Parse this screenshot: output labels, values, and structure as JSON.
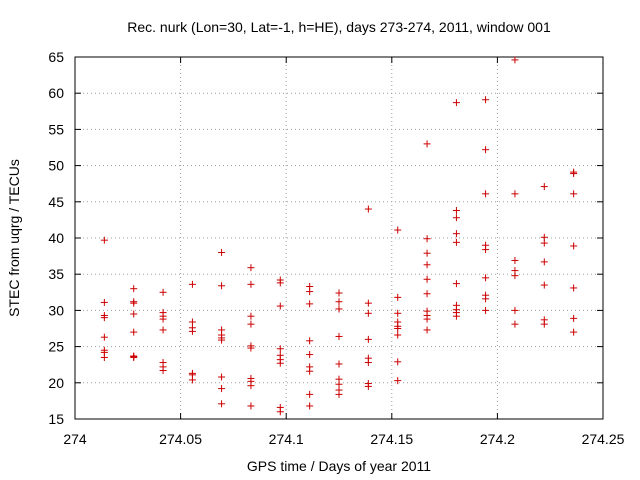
{
  "chart_data": {
    "type": "scatter",
    "title": "Rec. nurk (Lon=30, Lat=-1, h=HE), days 273-274, 2011, window 001",
    "xlabel": "GPS time / Days of year 2011",
    "ylabel": "STEC from uqrg / TECUs",
    "xlim": [
      274,
      274.25
    ],
    "ylim": [
      15,
      65
    ],
    "xticks": [
      "274",
      "274.05",
      "274.1",
      "274.15",
      "274.2",
      "274.25"
    ],
    "yticks": [
      "15",
      "20",
      "25",
      "30",
      "35",
      "40",
      "45",
      "50",
      "55",
      "60",
      "65"
    ],
    "grid": true,
    "marker": "plus",
    "color": "#cc0000",
    "series": [
      {
        "x": [
          274.0139,
          274.0139,
          274.0139,
          274.0139,
          274.0139,
          274.0139,
          274.0139,
          274.0139,
          274.0278,
          274.0278,
          274.0278,
          274.0278,
          274.0278,
          274.0278,
          274.0278,
          274.0278,
          274.0417,
          274.0417,
          274.0417,
          274.0417,
          274.0417,
          274.0417,
          274.0417,
          274.0417,
          274.0556,
          274.0556,
          274.0556,
          274.0556,
          274.0556,
          274.0556,
          274.0556,
          274.0694,
          274.0694,
          274.0694,
          274.0694,
          274.0694,
          274.0694,
          274.0694,
          274.0694,
          274.0694,
          274.0833,
          274.0833,
          274.0833,
          274.0833,
          274.0833,
          274.0833,
          274.0833,
          274.0833,
          274.0833,
          274.0833,
          274.0972,
          274.0972,
          274.0972,
          274.0972,
          274.0972,
          274.0972,
          274.0972,
          274.0972,
          274.0972,
          274.1111,
          274.1111,
          274.1111,
          274.1111,
          274.1111,
          274.1111,
          274.1111,
          274.1111,
          274.1111,
          274.125,
          274.125,
          274.125,
          274.125,
          274.125,
          274.125,
          274.125,
          274.125,
          274.125,
          274.1389,
          274.1389,
          274.1389,
          274.1389,
          274.1389,
          274.1389,
          274.1389,
          274.1389,
          274.1528,
          274.1528,
          274.1528,
          274.1528,
          274.1528,
          274.1528,
          274.1528,
          274.1528,
          274.1528,
          274.1667,
          274.1667,
          274.1667,
          274.1667,
          274.1667,
          274.1667,
          274.1667,
          274.1667,
          274.1667,
          274.1667,
          274.1806,
          274.1806,
          274.1806,
          274.1806,
          274.1806,
          274.1806,
          274.1806,
          274.1806,
          274.1806,
          274.1806,
          274.1944,
          274.1944,
          274.1944,
          274.1944,
          274.1944,
          274.1944,
          274.1944,
          274.1944,
          274.1944,
          274.2083,
          274.2083,
          274.2083,
          274.2083,
          274.2083,
          274.2083,
          274.2083,
          274.2222,
          274.2222,
          274.2222,
          274.2222,
          274.2222,
          274.2222,
          274.2222,
          274.2361,
          274.2361,
          274.2361,
          274.2361,
          274.2361,
          274.2361,
          274.2361
        ],
        "y": [
          39.7,
          31.1,
          29.3,
          29.0,
          26.3,
          24.5,
          24.2,
          23.5,
          33.0,
          31.2,
          31.0,
          29.5,
          27.0,
          23.7,
          23.6,
          23.5,
          32.5,
          29.7,
          29.2,
          28.8,
          27.3,
          22.8,
          22.2,
          21.7,
          33.6,
          28.4,
          27.6,
          27.1,
          21.3,
          21.1,
          20.4,
          38.0,
          33.4,
          27.3,
          26.6,
          26.2,
          25.9,
          20.8,
          19.2,
          17.1,
          35.9,
          33.6,
          29.2,
          28.1,
          25.1,
          24.8,
          20.6,
          20.2,
          19.6,
          16.8,
          34.2,
          33.8,
          30.6,
          24.7,
          23.8,
          23.2,
          22.7,
          16.6,
          16.0,
          33.3,
          32.6,
          30.9,
          25.8,
          23.9,
          22.2,
          21.6,
          18.4,
          16.8,
          32.4,
          31.2,
          30.2,
          26.4,
          22.6,
          20.5,
          19.8,
          19.0,
          18.4,
          44.0,
          31.0,
          29.6,
          26.0,
          23.4,
          22.8,
          19.9,
          19.5,
          41.1,
          31.8,
          29.6,
          28.4,
          27.8,
          27.5,
          26.6,
          22.9,
          20.3,
          53.0,
          39.9,
          37.9,
          36.3,
          34.3,
          32.3,
          29.9,
          29.3,
          28.8,
          27.3,
          58.7,
          43.8,
          42.8,
          40.6,
          39.4,
          33.7,
          30.7,
          30.1,
          29.7,
          29.2,
          59.1,
          52.2,
          46.1,
          39.0,
          38.4,
          34.5,
          32.1,
          31.6,
          30.0,
          64.6,
          46.1,
          36.9,
          35.5,
          34.8,
          30.0,
          28.1,
          47.1,
          40.1,
          39.3,
          36.7,
          33.5,
          28.7,
          28.1,
          49.1,
          48.9,
          46.1,
          38.9,
          33.1,
          28.9,
          27.0
        ]
      }
    ]
  }
}
